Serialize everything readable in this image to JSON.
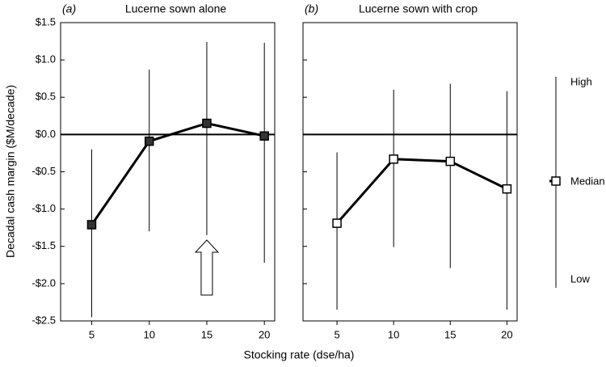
{
  "chart_data": [
    {
      "type": "line",
      "panel": "(a)",
      "title": "Lucerne sown alone",
      "ylabel": "Decadal cash margin ($M/decade)",
      "xlabel": "Stocking rate (dse/ha)",
      "x": [
        5,
        10,
        15,
        20
      ],
      "xlim": [
        2.3,
        20.9
      ],
      "xticks": [
        5,
        10,
        15,
        20
      ],
      "ylim": [
        -2.5,
        1.5
      ],
      "yticks": [
        {
          "value": 1.5,
          "label": "$1.5"
        },
        {
          "value": 1.0,
          "label": "$1.0"
        },
        {
          "value": 0.5,
          "label": "$0.5"
        },
        {
          "value": 0.0,
          "label": "$0.0"
        },
        {
          "value": -0.5,
          "label": "-$0.5"
        },
        {
          "value": -1.0,
          "label": "-$1.0"
        },
        {
          "value": -1.5,
          "label": "-$1.5"
        },
        {
          "value": -2.0,
          "label": "-$2.0"
        },
        {
          "value": -2.5,
          "label": "-$2.5"
        }
      ],
      "hline": 0,
      "color": "#000000",
      "marker_fill": "#333333",
      "series": [
        {
          "name": "Median",
          "values": [
            -1.21,
            -0.09,
            0.15,
            -0.02
          ],
          "high": [
            -0.2,
            0.87,
            1.24,
            1.23
          ],
          "low": [
            -2.45,
            -1.3,
            -1.35,
            -1.72
          ]
        }
      ]
    },
    {
      "type": "line",
      "panel": "(b)",
      "title": "Lucerne sown with crop",
      "x": [
        5,
        10,
        15,
        20
      ],
      "xlim": [
        2.0,
        20.9
      ],
      "xticks": [
        5,
        10,
        15,
        20
      ],
      "ylim": [
        -2.5,
        1.5
      ],
      "yticks": [
        1.5,
        1.0,
        0.5,
        0.0,
        -0.5,
        -1.0,
        -1.5,
        -2.0,
        -2.5
      ],
      "hline": 0,
      "color": "#000000",
      "marker_fill": "#ffffff",
      "series": [
        {
          "name": "Median",
          "values": [
            -1.19,
            -0.33,
            -0.36,
            -0.73
          ],
          "high": [
            -0.24,
            0.6,
            0.68,
            0.58
          ],
          "low": [
            -2.35,
            -1.51,
            -1.79,
            -2.35
          ]
        }
      ]
    }
  ],
  "legend": {
    "labels": [
      "High",
      "Median",
      "Low"
    ]
  }
}
